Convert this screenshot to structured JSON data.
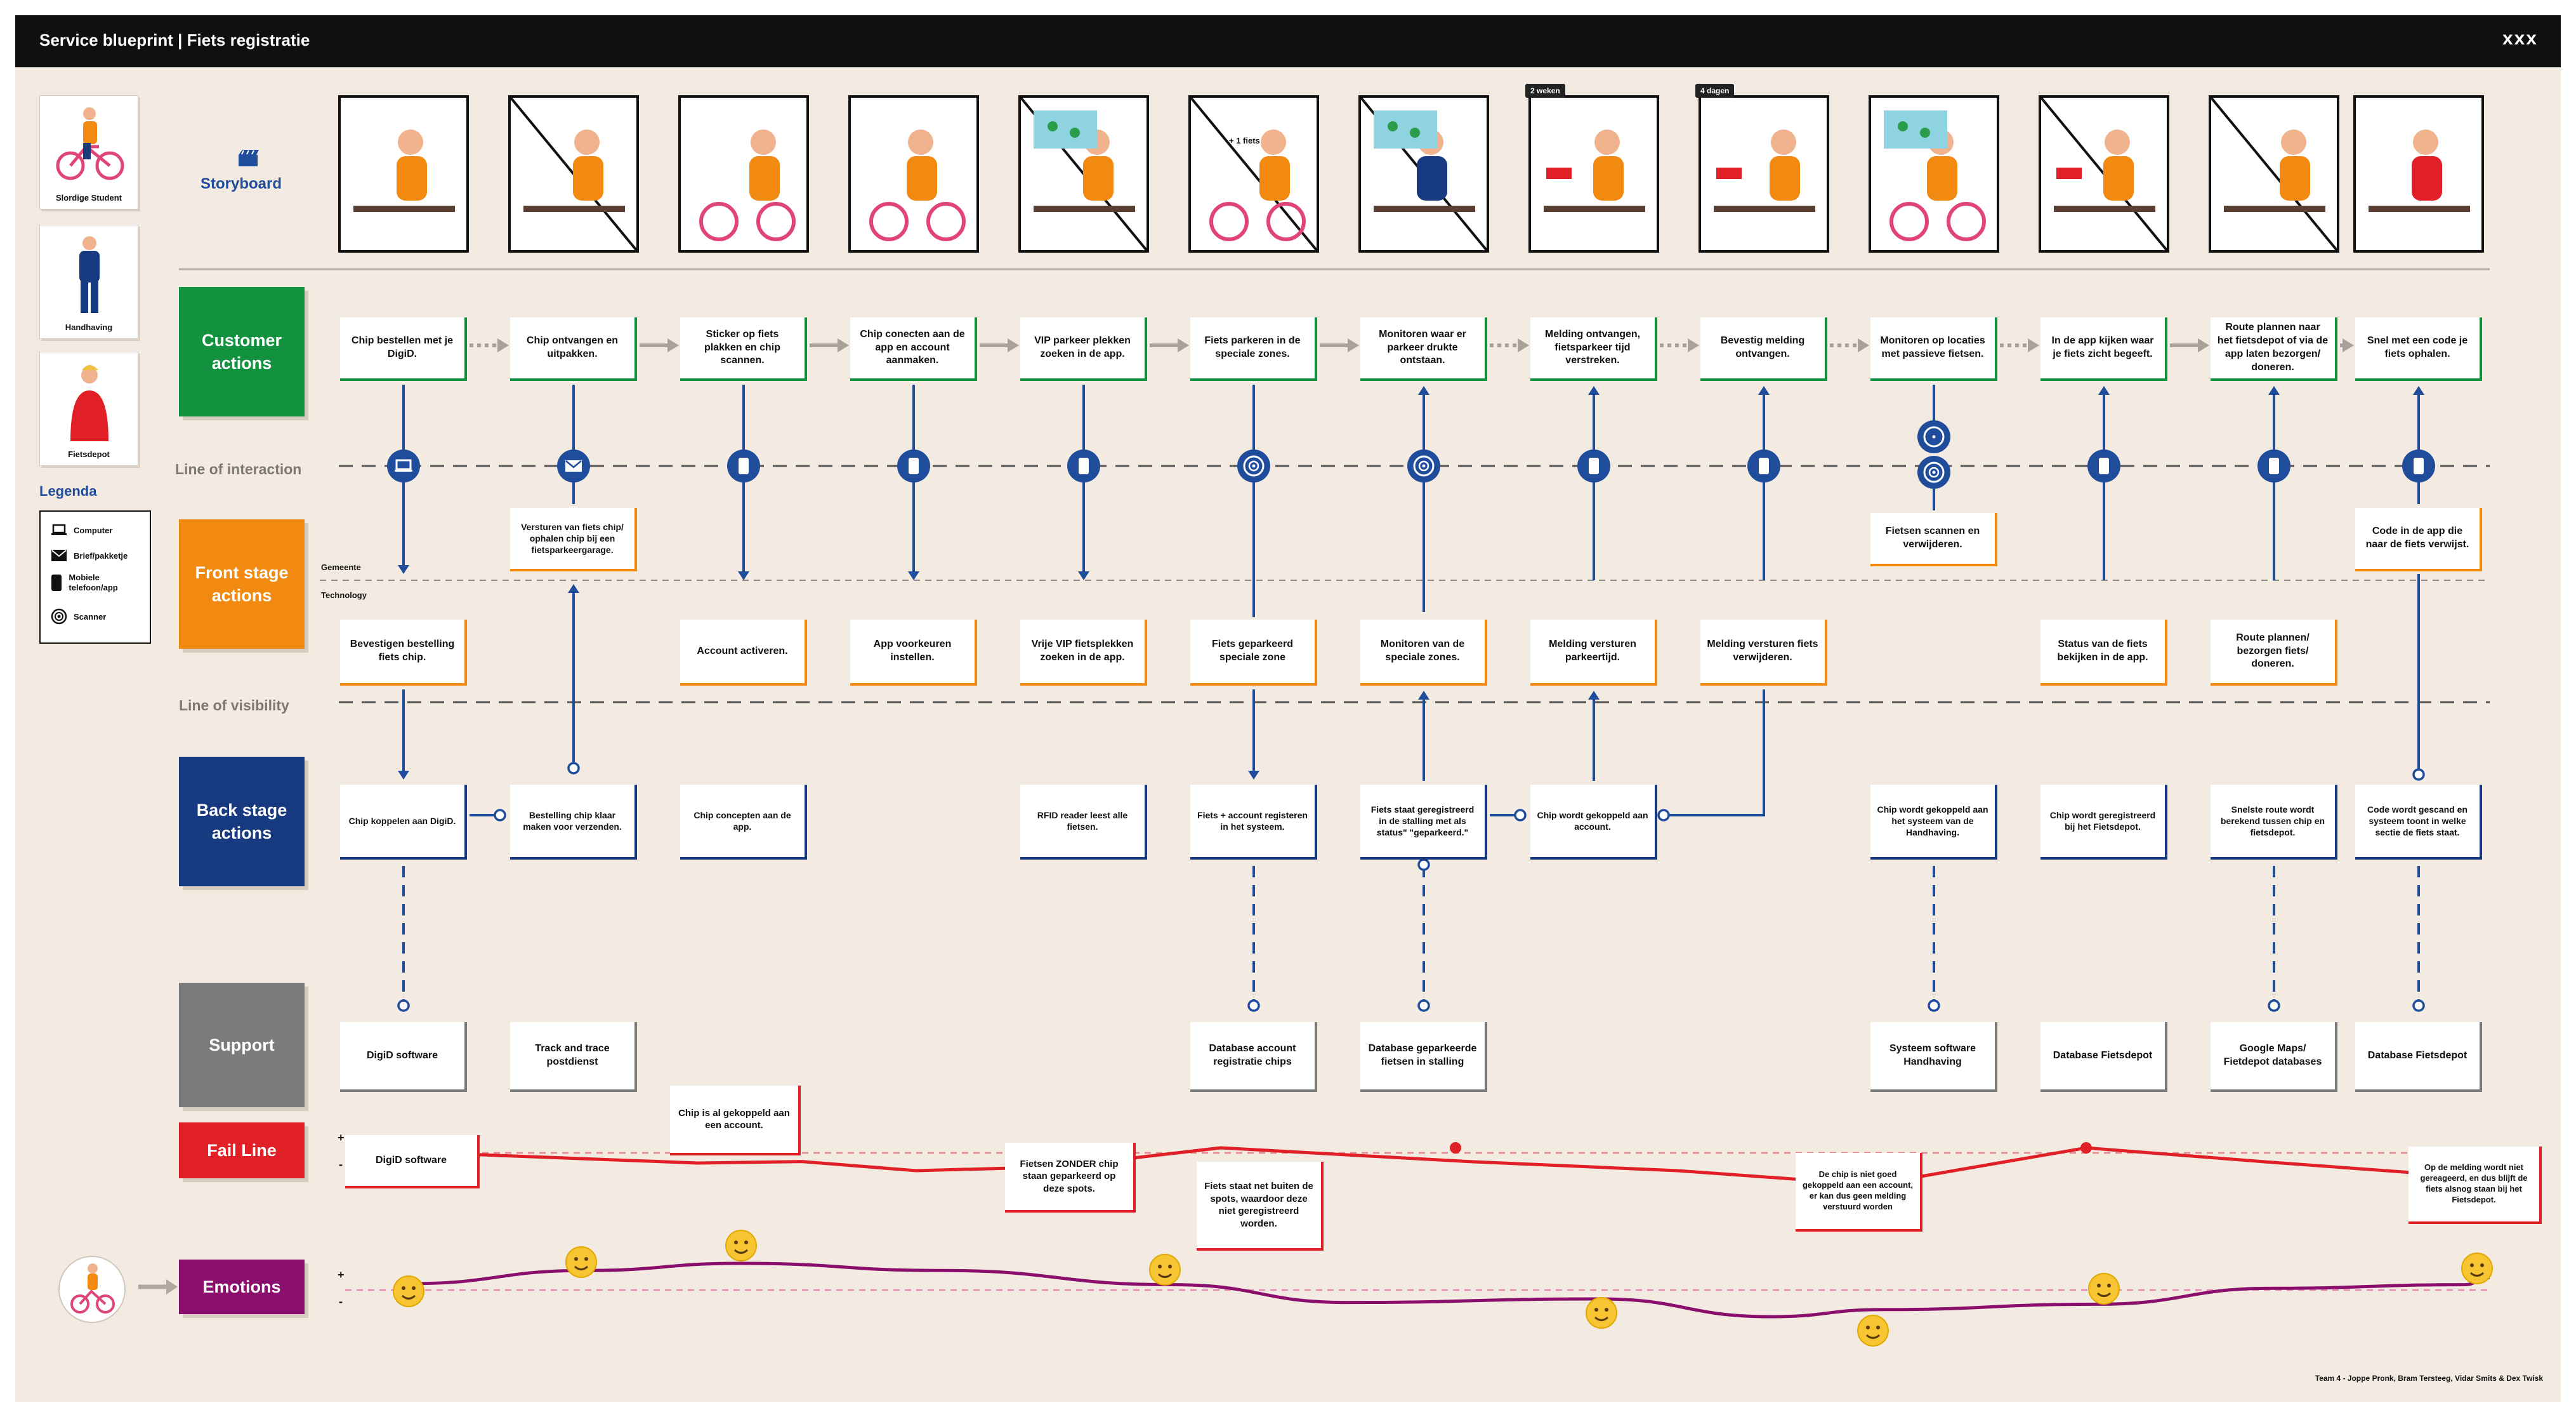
{
  "header": {
    "title": "Service blueprint | Fiets registratie",
    "close": "xxx"
  },
  "personas": [
    {
      "label": "Slordige Student",
      "color": "#f28a12"
    },
    {
      "label": "Handhaving",
      "color": "#16397f"
    },
    {
      "label": "Fietsdepot",
      "color": "#e01f26"
    }
  ],
  "legend": {
    "title": "Legenda",
    "items": [
      {
        "label": "Computer",
        "icon": "laptop-icon"
      },
      {
        "label": "Brief/pakketje",
        "icon": "envelope-icon"
      },
      {
        "label": "Mobiele telefoon/app",
        "icon": "phone-icon"
      },
      {
        "label": "Scanner",
        "icon": "scanner-icon"
      }
    ]
  },
  "labels": {
    "storyboard": "Storyboard",
    "line_of_interaction": "Line of interaction",
    "line_of_visibility": "Line of visibility",
    "gemeente": "Gemeente",
    "technology": "Technology",
    "plus": "+",
    "minus": "-"
  },
  "lanes": {
    "customer": "Customer actions",
    "front": "Front stage actions",
    "back": "Back stage actions",
    "support": "Support",
    "fail": "Fail Line",
    "emotions": "Emotions"
  },
  "storyboard_badges": [
    "2 weken",
    "4 dagen"
  ],
  "storyboard_caption": "+ 1 fiets",
  "customer_actions": [
    "Chip bestellen met je DigiD.",
    "Chip ontvangen en uitpakken.",
    "Sticker op fiets plakken en chip scannen.",
    "Chip conecten aan de app en account aanmaken.",
    "VIP parkeer plekken zoeken in de app.",
    "Fiets parkeren in de speciale zones.",
    "Monitoren waar er parkeer drukte ontstaan.",
    "Melding ontvangen, fietsparkeer tijd verstreken.",
    "Bevestig melding ontvangen.",
    "Monitoren op locaties met passieve fietsen.",
    "In de app kijken waar je fiets zicht begeeft.",
    "Route plannen naar het fietsdepot of via de app laten bezorgen/ doneren.",
    "Snel met een code je fiets ophalen."
  ],
  "interaction_icons": [
    "laptop-icon",
    "envelope-icon",
    "phone-icon",
    "phone-icon",
    "phone-icon",
    "scanner-icon",
    "scanner-icon",
    "phone-icon",
    "phone-icon",
    "scanner-icon",
    "phone-icon",
    "phone-icon",
    "phone-icon"
  ],
  "front_upper": {
    "col2": "Versturen van fiets chip/ ophalen chip bij een fietsparkeergarage.",
    "col10": "Fietsen scannen en verwijderen.",
    "col13": "Code in de app die naar de fiets verwijst."
  },
  "front_lower": [
    "Bevestigen bestelling fiets chip.",
    "",
    "Account activeren.",
    "App voorkeuren instellen.",
    "Vrije VIP fietsplekken zoeken in de app.",
    "Fiets geparkeerd speciale zone",
    "Monitoren van de speciale zones.",
    "Melding versturen parkeertijd.",
    "Melding versturen fiets verwijderen.",
    "",
    "Status van de fiets bekijken in de app.",
    "Route plannen/ bezorgen fiets/ doneren.",
    ""
  ],
  "back_stage": [
    "Chip koppelen aan DigiD.",
    "Bestelling chip klaar maken voor verzenden.",
    "Chip concepten aan de app.",
    "",
    "RFID reader leest alle fietsen.",
    "Fiets + account registeren in het systeem.",
    "Fiets staat geregistreerd in de stalling met als status\" \"geparkeerd.\"",
    "Chip wordt gekoppeld aan account.",
    "",
    "Chip wordt gekoppeld aan het systeem van de Handhaving.",
    "Chip wordt geregistreerd bij het Fietsdepot.",
    "Snelste route wordt berekend tussen chip en fietsdepot.",
    "Code wordt gescand en systeem toont in welke sectie de fiets staat."
  ],
  "support": [
    "DigiD software",
    "Track and trace postdienst",
    "",
    "",
    "",
    "Database account registratie chips",
    "Database geparkeerde fietsen in stalling",
    "",
    "",
    "Systeem software Handhaving",
    "Database Fietsdepot",
    "Google Maps/ Fietdepot databases",
    "Database Fietsdepot"
  ],
  "fail_notes": [
    "DigiD software",
    "Chip is al gekoppeld aan een account.",
    "Fietsen ZONDER chip staan geparkeerd op deze spots.",
    "Fiets staat net buiten de spots, waardoor deze niet geregistreerd worden.",
    "De chip is niet goed gekoppeld aan een account, er kan dus geen melding verstuurd worden",
    "Op de melding wordt niet gereageerd, en dus blijft de fiets alsnog staan bij het Fietsdepot."
  ],
  "fail_curve": [
    0.25,
    0.3,
    0.4,
    0.38,
    0.5,
    0.45,
    0.2,
    0.38,
    0.5,
    0.68,
    0.58,
    0.2,
    0.38,
    0.6
  ],
  "emotion_curve": [
    0.18,
    0.55,
    0.75,
    0.55,
    0.15,
    -0.35,
    -0.25,
    -0.75,
    -0.55,
    -0.4,
    0.05,
    0.15,
    0.35
  ],
  "emotion_emojis": [
    "neutral",
    "smile",
    "grin",
    "halo",
    "dizzy",
    "dizzy",
    "neutral",
    "monocle",
    "happy"
  ],
  "colors": {
    "green": "#12913f",
    "orange": "#f28a12",
    "navy": "#16397f",
    "grey": "#7b7b7b",
    "red": "#e01f26",
    "purple": "#8a0f6d",
    "connector": "#1f4d9c"
  },
  "credits": "Team 4 - Joppe Pronk, Bram Tersteeg, Vidar Smits & Dex Twisk"
}
